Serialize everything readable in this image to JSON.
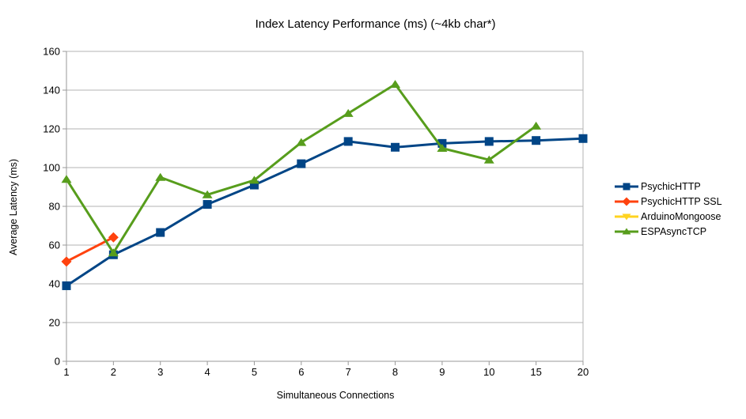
{
  "chart_data": {
    "type": "line",
    "title": "Index Latency Performance (ms) (~4kb char*)",
    "xlabel": "Simultaneous Connections",
    "ylabel": "Average Latency (ms)",
    "categories": [
      "1",
      "2",
      "3",
      "4",
      "5",
      "6",
      "7",
      "8",
      "9",
      "10",
      "15",
      "20"
    ],
    "ylim": [
      0,
      160
    ],
    "ytick_step": 20,
    "grid": "horizontal",
    "legend_position": "right",
    "series": [
      {
        "name": "PsychicHTTP",
        "color": "#004586",
        "marker": "square",
        "values": [
          39,
          55,
          66.5,
          81,
          91,
          102,
          113.5,
          110.5,
          112.5,
          113.5,
          114,
          115
        ]
      },
      {
        "name": "PsychicHTTP SSL",
        "color": "#ff420e",
        "marker": "diamond",
        "values": [
          51.5,
          64,
          null,
          null,
          null,
          null,
          null,
          null,
          null,
          null,
          null,
          null
        ]
      },
      {
        "name": "ArduinoMongoose",
        "color": "#ffd320",
        "marker": "triangle-down",
        "values": [
          null,
          null,
          null,
          null,
          null,
          null,
          null,
          null,
          null,
          null,
          null,
          null
        ]
      },
      {
        "name": "ESPAsyncTCP",
        "color": "#579d1c",
        "marker": "triangle-up",
        "values": [
          94,
          56,
          95,
          86,
          93.5,
          113,
          128,
          143,
          110,
          104,
          121.5,
          null
        ]
      }
    ]
  },
  "colors": {
    "background": "#ffffff",
    "gridline": "#b3b3b3",
    "axis": "#999999",
    "text": "#000000"
  }
}
